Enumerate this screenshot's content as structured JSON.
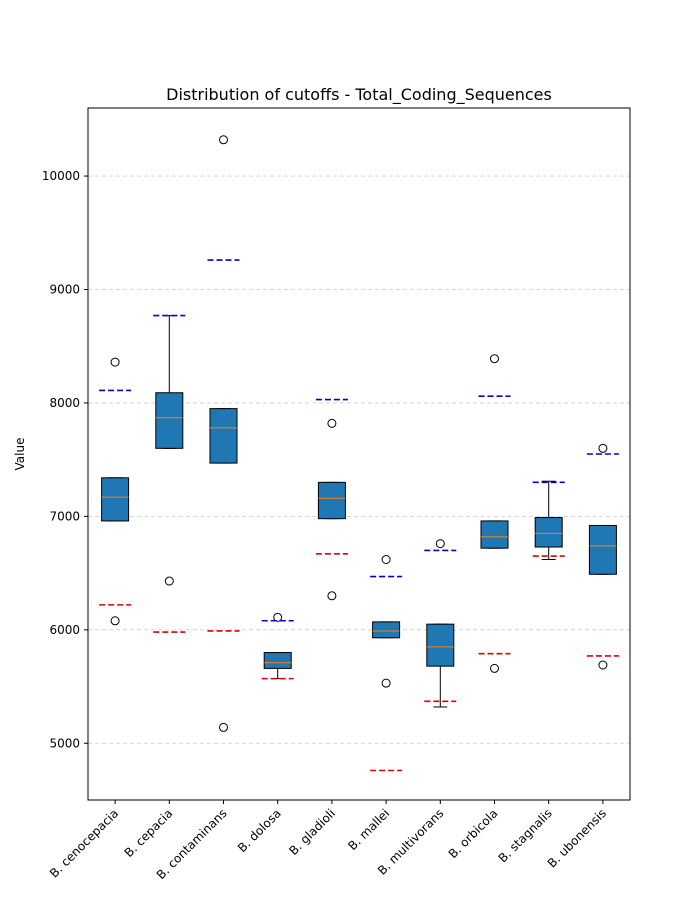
{
  "chart_data": {
    "type": "box",
    "title": "Distribution of cutoffs - Total_Coding_Sequences",
    "xlabel": "",
    "ylabel": "Value",
    "ylim": [
      4500,
      10600
    ],
    "yticks": [
      5000,
      6000,
      7000,
      8000,
      9000,
      10000
    ],
    "grid": "y, dashed",
    "box_color": "#1f77b4",
    "median_color": "#ff7f0e",
    "upper_cutoff_color": "#0000cc",
    "lower_cutoff_color": "#dd0000",
    "categories": [
      "B. cenocepacia",
      "B. cepacia",
      "B. contaminans",
      "B. dolosa",
      "B. gladioli",
      "B. mallei",
      "B. multivorans",
      "B. orbicola",
      "B. stagnalis",
      "B. ubonensis"
    ],
    "boxes": [
      {
        "q1": 6960,
        "median": 7170,
        "q3": 7340,
        "whisker_low": 6960,
        "whisker_high": 7340,
        "fliers": [
          8360,
          6080
        ],
        "upper_cutoff": 8110,
        "lower_cutoff": 6220
      },
      {
        "q1": 7600,
        "median": 7870,
        "q3": 8090,
        "whisker_low": 7600,
        "whisker_high": 8770,
        "fliers": [
          6430
        ],
        "upper_cutoff": 8770,
        "lower_cutoff": 5980
      },
      {
        "q1": 7470,
        "median": 7780,
        "q3": 7950,
        "whisker_low": 7470,
        "whisker_high": 7950,
        "fliers": [
          10320,
          5140
        ],
        "upper_cutoff": 9260,
        "lower_cutoff": 5990
      },
      {
        "q1": 5660,
        "median": 5710,
        "q3": 5800,
        "whisker_low": 5570,
        "whisker_high": 5800,
        "fliers": [
          6110
        ],
        "upper_cutoff": 6080,
        "lower_cutoff": 5570
      },
      {
        "q1": 6980,
        "median": 7160,
        "q3": 7300,
        "whisker_low": 6980,
        "whisker_high": 7300,
        "fliers": [
          7820,
          6300
        ],
        "upper_cutoff": 8030,
        "lower_cutoff": 6670
      },
      {
        "q1": 5930,
        "median": 5990,
        "q3": 6070,
        "whisker_low": 5930,
        "whisker_high": 6070,
        "fliers": [
          6620,
          5530
        ],
        "upper_cutoff": 6470,
        "lower_cutoff": 4760
      },
      {
        "q1": 5680,
        "median": 5850,
        "q3": 6050,
        "whisker_low": 5320,
        "whisker_high": 6050,
        "fliers": [
          6760
        ],
        "upper_cutoff": 6700,
        "lower_cutoff": 5370
      },
      {
        "q1": 6720,
        "median": 6820,
        "q3": 6960,
        "whisker_low": 6720,
        "whisker_high": 6960,
        "fliers": [
          8390,
          5660
        ],
        "upper_cutoff": 8060,
        "lower_cutoff": 5790
      },
      {
        "q1": 6730,
        "median": 6850,
        "q3": 6990,
        "whisker_low": 6620,
        "whisker_high": 7310,
        "fliers": [],
        "upper_cutoff": 7300,
        "lower_cutoff": 6650
      },
      {
        "q1": 6490,
        "median": 6740,
        "q3": 6920,
        "whisker_low": 6490,
        "whisker_high": 6920,
        "fliers": [
          7600,
          5690
        ],
        "upper_cutoff": 7550,
        "lower_cutoff": 5770
      }
    ]
  }
}
